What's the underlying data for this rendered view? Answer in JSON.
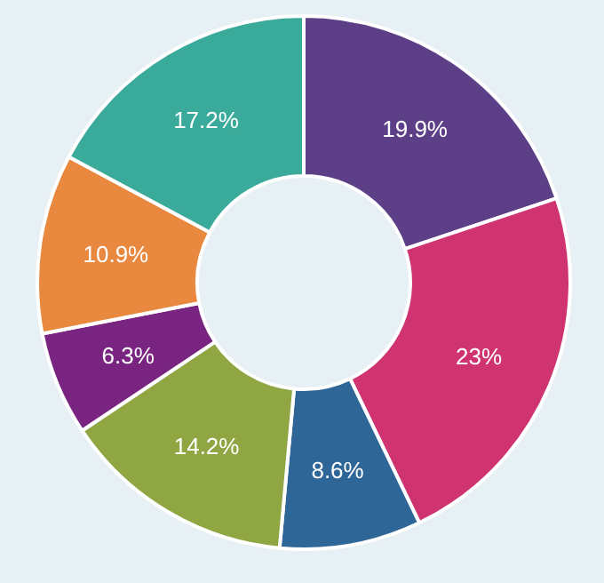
{
  "chart_data": {
    "type": "donut",
    "categories": [
      null,
      null,
      null,
      null,
      null,
      null,
      null
    ],
    "values": [
      19.9,
      23,
      8.6,
      14.2,
      6.3,
      10.9,
      17.2
    ],
    "colors": [
      "#5c3f87",
      "#cf3370",
      "#2f6698",
      "#8fa643",
      "#7a2482",
      "#e9883f",
      "#3aaa9b"
    ],
    "value_labels": [
      "19.9%",
      "23%",
      "8.6%",
      "14.2%",
      "6.3%",
      "10.9%",
      "17.2%"
    ]
  }
}
